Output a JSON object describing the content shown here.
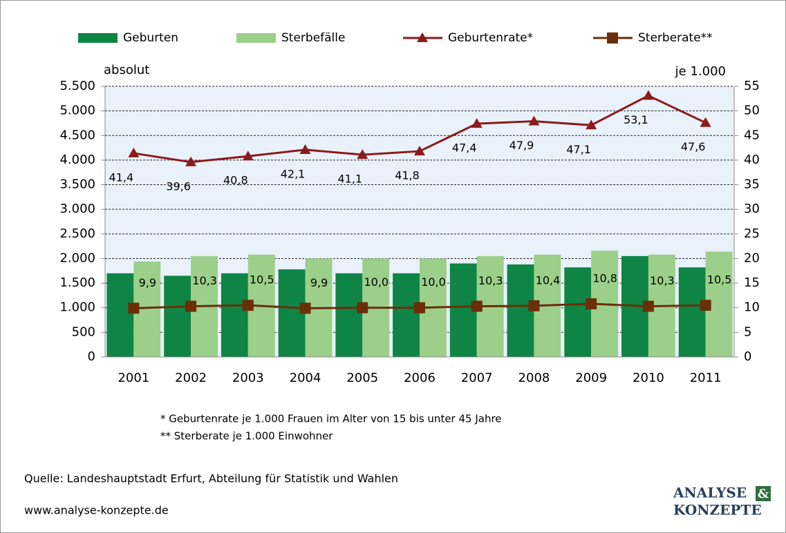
{
  "chart_data": {
    "type": "bar-line",
    "categories": [
      "2001",
      "2002",
      "2003",
      "2004",
      "2005",
      "2006",
      "2007",
      "2008",
      "2009",
      "2010",
      "2011"
    ],
    "series": [
      {
        "name": "Geburten",
        "type": "bar",
        "color": "#0e8545",
        "values": [
          1700,
          1650,
          1700,
          1780,
          1700,
          1700,
          1900,
          1880,
          1820,
          2050,
          1820
        ]
      },
      {
        "name": "Sterbefälle",
        "type": "bar",
        "color": "#9ccf8a",
        "values": [
          1940,
          2050,
          2080,
          2000,
          2000,
          2000,
          2050,
          2080,
          2160,
          2080,
          2140
        ]
      },
      {
        "name": "Geburtenrate*",
        "type": "line",
        "marker": "triangle",
        "axis": "y2",
        "color": "#8b1a1a",
        "values": [
          41.4,
          39.6,
          40.8,
          42.1,
          41.1,
          41.8,
          47.4,
          47.9,
          47.1,
          53.1,
          47.6
        ],
        "value_labels": [
          "41,4",
          "39,6",
          "40,8",
          "42,1",
          "41,1",
          "41,8",
          "47,4",
          "47,9",
          "47,1",
          "53,1",
          "47,6"
        ]
      },
      {
        "name": "Sterberate**",
        "type": "line",
        "marker": "square",
        "axis": "y2",
        "color": "#6b2e08",
        "values": [
          9.9,
          10.3,
          10.5,
          9.9,
          10.0,
          10.0,
          10.3,
          10.4,
          10.8,
          10.3,
          10.5
        ],
        "value_labels": [
          "9,9",
          "10,3",
          "10,5",
          "9,9",
          "10,0",
          "10,0",
          "10,3",
          "10,4",
          "10,8",
          "10,3",
          "10,5"
        ]
      }
    ],
    "ylabel": "absolut",
    "y2label": "je 1.000",
    "ylim": [
      0,
      5500
    ],
    "yticks": [
      0,
      500,
      {
        "value": 1000,
        "label": "1.000"
      },
      {
        "value": 1500,
        "label": "1.500"
      },
      {
        "value": 2000,
        "label": "2.000"
      },
      {
        "value": 2500,
        "label": "2.500"
      },
      {
        "value": 3000,
        "label": "3.000"
      },
      {
        "value": 3500,
        "label": "3.500"
      },
      {
        "value": 4000,
        "label": "4.000"
      },
      {
        "value": 4500,
        "label": "4.500"
      },
      {
        "value": 5000,
        "label": "5.000"
      },
      {
        "value": 5500,
        "label": "5.500"
      }
    ],
    "y2lim": [
      0,
      55
    ],
    "y2ticks": [
      0,
      5,
      10,
      15,
      20,
      25,
      30,
      35,
      40,
      45,
      50,
      55
    ],
    "grid": true,
    "legend": "top",
    "footnotes": [
      "*   Geburtenrate je 1.000  Frauen im Alter von 15 bis unter 45 Jahre",
      "** Sterberate je 1.000  Einwohner"
    ]
  },
  "source": "Quelle: Landeshauptstadt Erfurt, Abteilung für Statistik und Wahlen",
  "url": "www.analyse-konzepte.de",
  "logo": [
    "ANALYSE",
    "&",
    "KONZEPTE"
  ]
}
